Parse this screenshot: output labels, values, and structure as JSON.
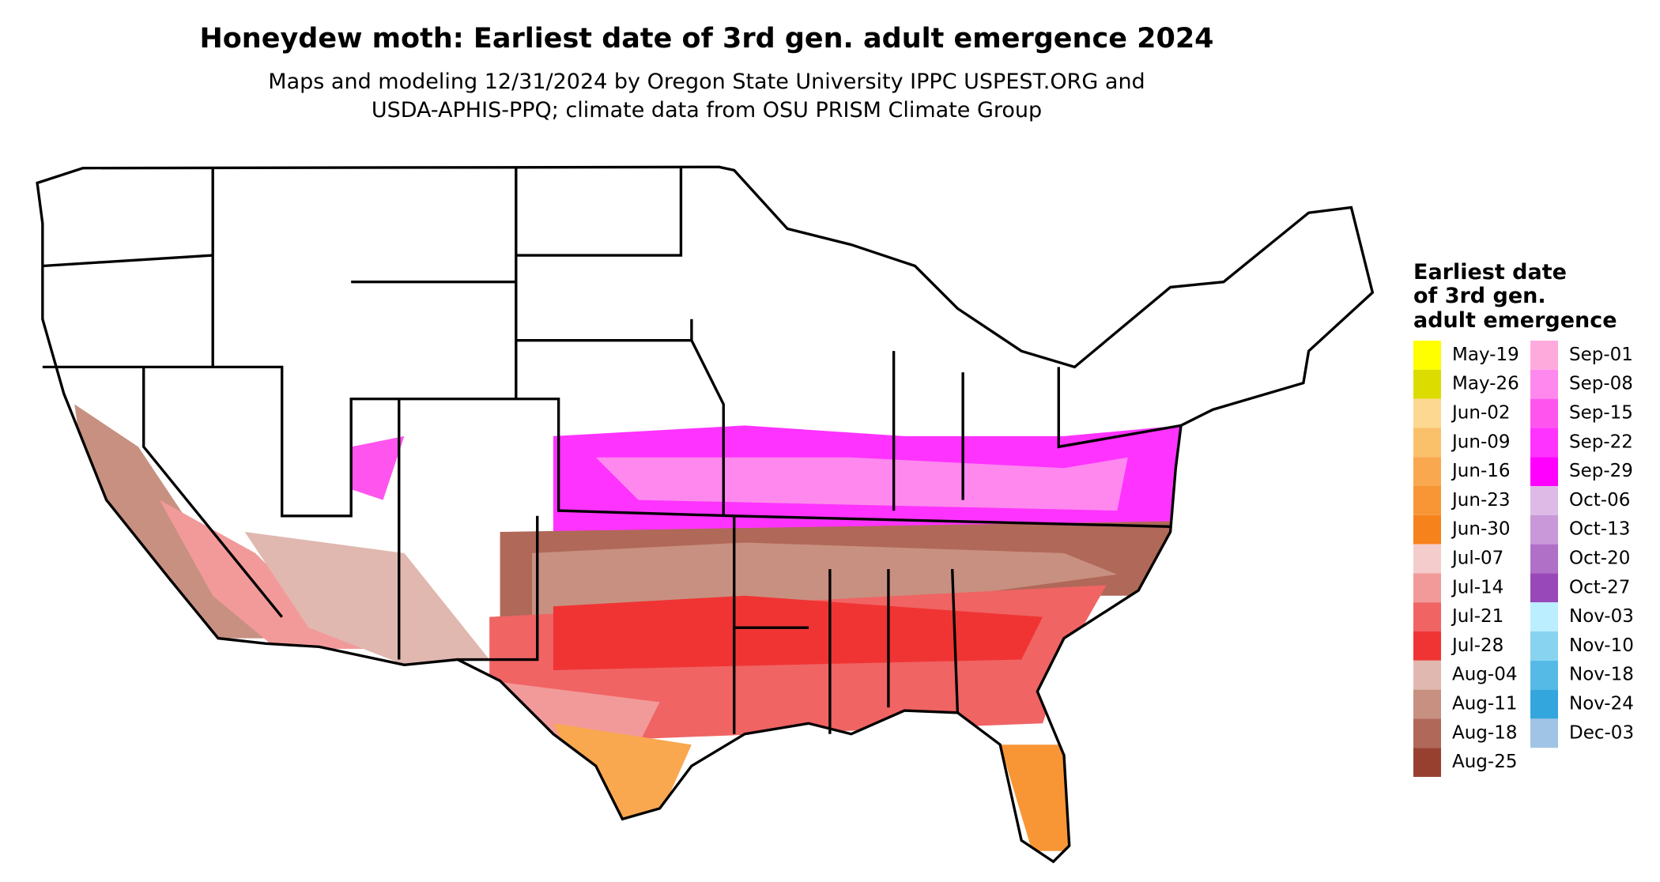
{
  "header": {
    "title": "Honeydew moth: Earliest date of 3rd gen. adult emergence 2024",
    "subtitle_lines": [
      "Maps and modeling 12/31/2024 by Oregon State University IPPC USPEST.ORG and",
      "USDA-APHIS-PPQ; climate data from OSU PRISM Climate Group"
    ]
  },
  "legend": {
    "title_lines": [
      "Earliest date",
      "of 3rd gen.",
      "adult emergence"
    ],
    "columns": [
      [
        {
          "label": "May-19",
          "color": "#ffff00"
        },
        {
          "label": "May-26",
          "color": "#dcdc00"
        },
        {
          "label": "Jun-02",
          "color": "#fdd890"
        },
        {
          "label": "Jun-09",
          "color": "#fbc06a"
        },
        {
          "label": "Jun-16",
          "color": "#f9a84f"
        },
        {
          "label": "Jun-23",
          "color": "#f89636"
        },
        {
          "label": "Jun-30",
          "color": "#f6821c"
        },
        {
          "label": "Jul-07",
          "color": "#f4cccc"
        },
        {
          "label": "Jul-14",
          "color": "#f29a9a"
        },
        {
          "label": "Jul-21",
          "color": "#f06464"
        },
        {
          "label": "Jul-28",
          "color": "#f03434"
        },
        {
          "label": "Aug-04",
          "color": "#e0b8b0"
        },
        {
          "label": "Aug-11",
          "color": "#c89080"
        },
        {
          "label": "Aug-18",
          "color": "#b06858"
        },
        {
          "label": "Aug-25",
          "color": "#984030"
        }
      ],
      [
        {
          "label": "Sep-01",
          "color": "#ffaadd"
        },
        {
          "label": "Sep-08",
          "color": "#ff88ee"
        },
        {
          "label": "Sep-15",
          "color": "#ff55ee"
        },
        {
          "label": "Sep-22",
          "color": "#ff33ff"
        },
        {
          "label": "Sep-29",
          "color": "#ff00ff"
        },
        {
          "label": "Oct-06",
          "color": "#ddbbe6"
        },
        {
          "label": "Oct-13",
          "color": "#c898d8"
        },
        {
          "label": "Oct-20",
          "color": "#b070c8"
        },
        {
          "label": "Oct-27",
          "color": "#9848b8"
        },
        {
          "label": "Nov-03",
          "color": "#bbeeff"
        },
        {
          "label": "Nov-10",
          "color": "#88d4f0"
        },
        {
          "label": "Nov-18",
          "color": "#55bbe6"
        },
        {
          "label": "Nov-24",
          "color": "#33a6dd"
        },
        {
          "label": "Dec-03",
          "color": "#a0c4e6"
        }
      ]
    ]
  }
}
